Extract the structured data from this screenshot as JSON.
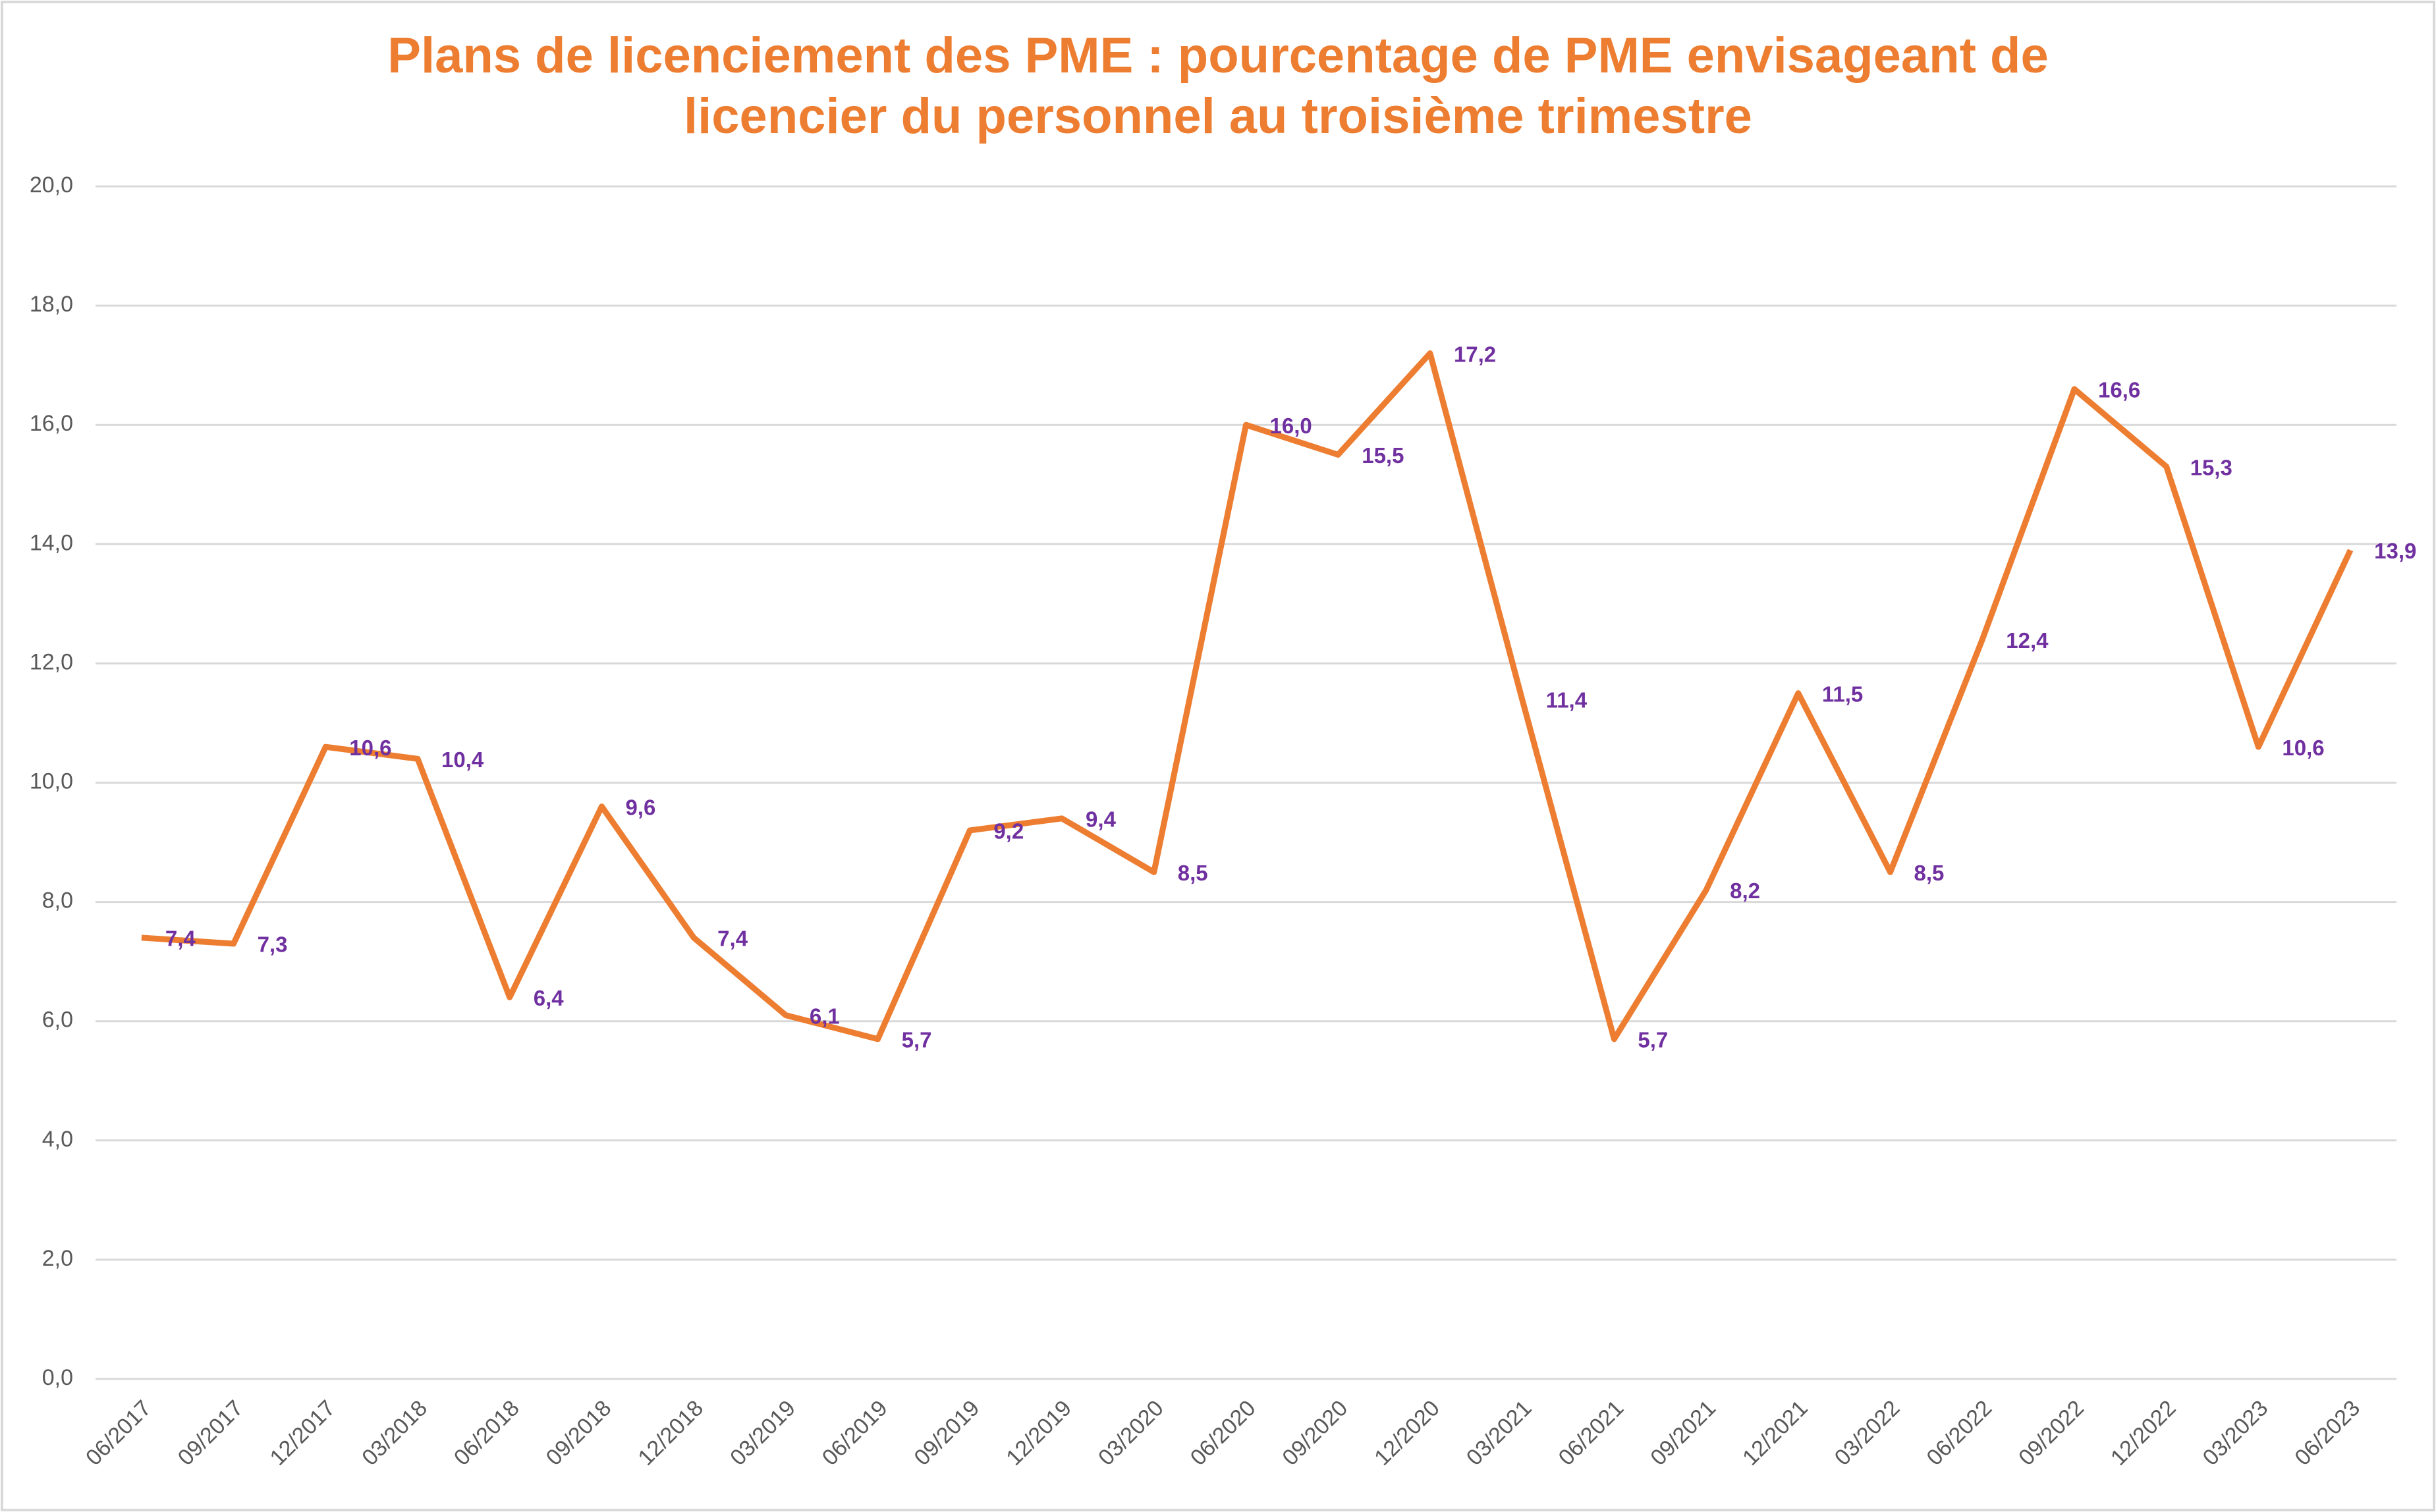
{
  "chart_data": {
    "type": "line",
    "title": [
      "Plans de licenciement des PME : pourcentage de PME envisageant de",
      "licencier du personnel au troisième trimestre"
    ],
    "categories": [
      "06/2017",
      "09/2017",
      "12/2017",
      "03/2018",
      "06/2018",
      "09/2018",
      "12/2018",
      "03/2019",
      "06/2019",
      "09/2019",
      "12/2019",
      "03/2020",
      "06/2020",
      "09/2020",
      "12/2020",
      "03/2021",
      "06/2021",
      "09/2021",
      "12/2021",
      "03/2022",
      "06/2022",
      "09/2022",
      "12/2022",
      "03/2023",
      "06/2023"
    ],
    "series": [
      {
        "name": "PME",
        "color": "#ED7D31",
        "label_color": "#7030A0",
        "values": [
          7.4,
          7.3,
          10.6,
          10.4,
          6.4,
          9.6,
          7.4,
          6.1,
          5.7,
          9.2,
          9.4,
          8.5,
          16.0,
          15.5,
          17.2,
          11.4,
          5.7,
          8.2,
          11.5,
          8.5,
          12.4,
          16.6,
          15.3,
          10.6,
          13.9
        ],
        "value_labels": [
          "7,4",
          "7,3",
          "10,6",
          "10,4",
          "6,4",
          "9,6",
          "7,4",
          "6,1",
          "5,7",
          "9,2",
          "9,4",
          "8,5",
          "16,0",
          "15,5",
          "17,2",
          "11,4",
          "5,7",
          "8,2",
          "11,5",
          "8,5",
          "12,4",
          "16,6",
          "15,3",
          "10,6",
          "13,9"
        ]
      }
    ],
    "ylim": [
      0,
      20
    ],
    "yticks": [
      {
        "value": 0,
        "label": "0,0"
      },
      {
        "value": 2,
        "label": "2,0"
      },
      {
        "value": 4,
        "label": "4,0"
      },
      {
        "value": 6,
        "label": "6,0"
      },
      {
        "value": 8,
        "label": "8,0"
      },
      {
        "value": 10,
        "label": "10,0"
      },
      {
        "value": 12,
        "label": "12,0"
      },
      {
        "value": 14,
        "label": "14,0"
      },
      {
        "value": 16,
        "label": "16,0"
      },
      {
        "value": 18,
        "label": "18,0"
      },
      {
        "value": 20,
        "label": "20,0"
      }
    ],
    "grid": true
  }
}
